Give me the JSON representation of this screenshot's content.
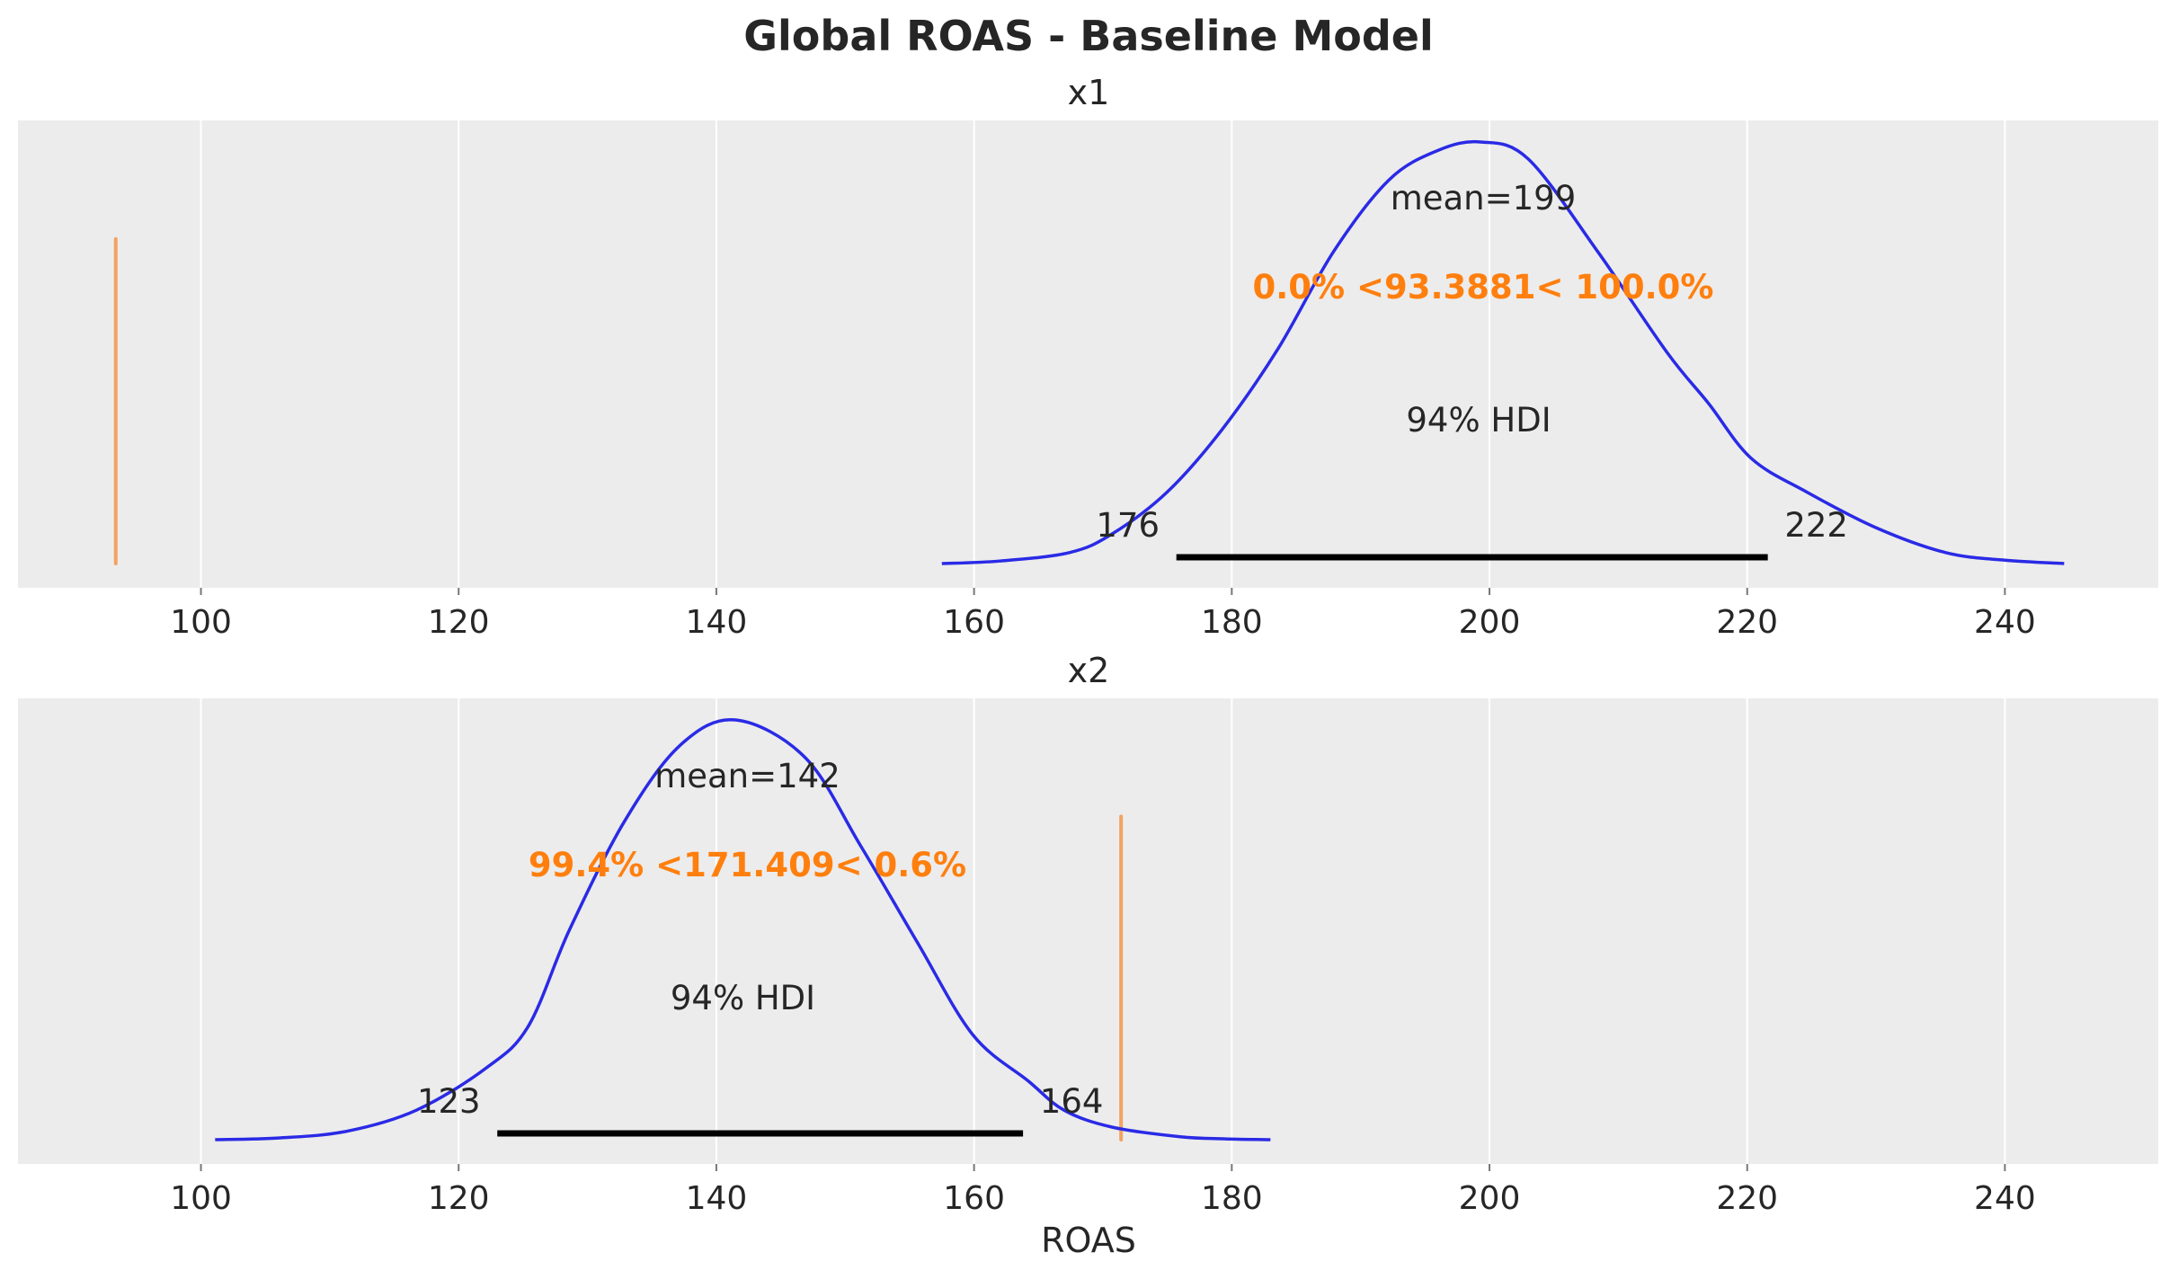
{
  "chart_data": {
    "type": "line",
    "title": "Global ROAS - Baseline Model",
    "xlabel": "ROAS",
    "xlim": [
      85.8,
      251.9
    ],
    "xticks": [
      100,
      120,
      140,
      160,
      180,
      200,
      220,
      240
    ],
    "grid": true,
    "colors": {
      "kde": "#2a2ae6",
      "ref": "#f4a261",
      "ref_text": "#ff7f0e",
      "hdi": "#000000",
      "panel_bg": "#ececec",
      "text": "#262626"
    },
    "panels": [
      {
        "name": "x1",
        "title": "x1",
        "mean_label": "mean=199",
        "mean": 199.3,
        "ref_label": "0.0% <93.3881< 100.0%",
        "ref_value": 93.3881,
        "hdi_label": "94% HDI",
        "hdi": [
          175.7,
          221.6
        ],
        "hdi_low_label": "176",
        "hdi_high_label": "222",
        "kde_x": [
          157.5,
          162,
          167.4,
          170.7,
          175,
          179.3,
          183.6,
          187.9,
          192.2,
          196,
          199.3,
          203,
          208.4,
          213.8,
          217,
          220.3,
          224.6,
          230,
          235.4,
          240,
          244.6
        ],
        "kde_y": [
          0,
          0.006,
          0.026,
          0.07,
          0.17,
          0.32,
          0.51,
          0.74,
          0.91,
          0.98,
          1.0,
          0.96,
          0.74,
          0.5,
          0.38,
          0.25,
          0.17,
          0.085,
          0.026,
          0.008,
          0
        ]
      },
      {
        "name": "x2",
        "title": "x2",
        "mean_label": "mean=142",
        "mean": 142.2,
        "ref_label": "99.4% <171.409< 0.6%",
        "ref_value": 171.409,
        "hdi_label": "94% HDI",
        "hdi": [
          123.0,
          163.8
        ],
        "hdi_low_label": "123",
        "hdi_high_label": "164",
        "kde_x": [
          101.1,
          106,
          111.3,
          116.7,
          122.1,
          125.4,
          128.6,
          132.9,
          137.2,
          141.5,
          146.9,
          151.2,
          155.6,
          159.9,
          164.2,
          167,
          170.7,
          176,
          179.5,
          183
        ],
        "kde_y": [
          0,
          0.004,
          0.02,
          0.07,
          0.17,
          0.27,
          0.5,
          0.76,
          0.94,
          1.0,
          0.91,
          0.7,
          0.47,
          0.25,
          0.14,
          0.07,
          0.03,
          0.007,
          0.002,
          0
        ]
      }
    ]
  }
}
